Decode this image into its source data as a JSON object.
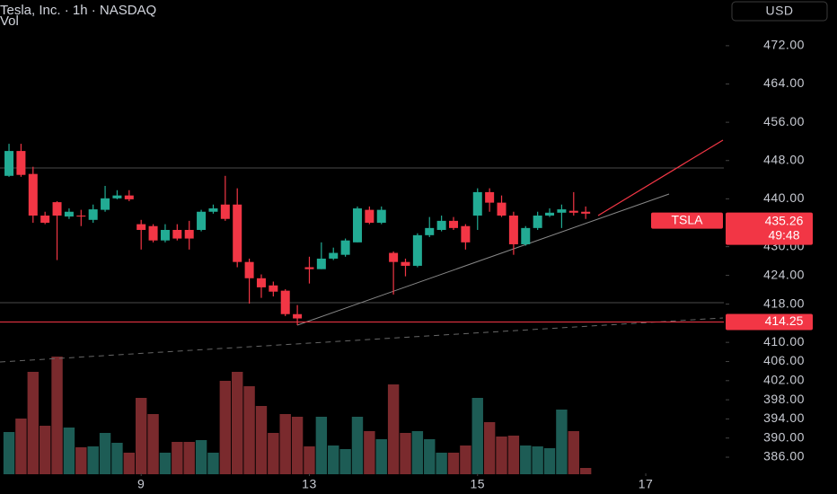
{
  "header": {
    "title": "Tesla, Inc. · 1h · NASDAQ",
    "currency": "USD"
  },
  "chart_data": {
    "type": "candlestick",
    "xlim": [
      -0.75,
      59.5
    ],
    "xticks": [
      {
        "value": 11,
        "label": "9"
      },
      {
        "value": 25,
        "label": "13"
      },
      {
        "value": 39,
        "label": "15"
      },
      {
        "value": 53,
        "label": "17"
      }
    ],
    "ylim": [
      383,
      477.8
    ],
    "yticks": [
      {
        "value": 472,
        "label": "472.00"
      },
      {
        "value": 464,
        "label": "464.00"
      },
      {
        "value": 456,
        "label": "456.00"
      },
      {
        "value": 448,
        "label": "448.00"
      },
      {
        "value": 440,
        "label": "440.00"
      },
      {
        "value": 430,
        "label": "430.00"
      },
      {
        "value": 424,
        "label": "424.00"
      },
      {
        "value": 418,
        "label": "418.00"
      },
      {
        "value": 410,
        "label": "410.00"
      },
      {
        "value": 406,
        "label": "406.00"
      },
      {
        "value": 402,
        "label": "402.00"
      },
      {
        "value": 398,
        "label": "398.00"
      },
      {
        "value": 394,
        "label": "394.00"
      },
      {
        "value": 390,
        "label": "390.00"
      },
      {
        "value": 386,
        "label": "386.00"
      }
    ],
    "series": [
      {
        "name": "TSLA",
        "up_color": "#22ab94",
        "down_color": "#f23645",
        "open": [
          444.8,
          450.0,
          445.2,
          436.5,
          439.3,
          436.3,
          436.5,
          435.6,
          437.7,
          440.1,
          440.7,
          434.7,
          434.3,
          431.3,
          433.5,
          433.5,
          433.5,
          437.3,
          438.8,
          438.8,
          426.8,
          423.4,
          421.9,
          420.8,
          415.9,
          425.7,
          425.3,
          427.5,
          428.3,
          430.9,
          437.7,
          435.0,
          428.7,
          426.8,
          426.0,
          432.4,
          433.5,
          435.4,
          434.3,
          436.5,
          441.4,
          439.2,
          436.5,
          430.5,
          433.9,
          436.5,
          437.1,
          437.5,
          437.3
        ],
        "high": [
          451.5,
          451.5,
          446.7,
          437.3,
          439.5,
          438.0,
          437.7,
          438.8,
          442.7,
          441.8,
          441.8,
          435.6,
          434.7,
          434.7,
          434.7,
          435.4,
          437.7,
          438.8,
          444.8,
          442.2,
          427.5,
          424.2,
          422.7,
          421.1,
          417.8,
          427.9,
          430.9,
          429.8,
          431.7,
          438.4,
          438.4,
          438.4,
          429.0,
          427.5,
          432.8,
          436.2,
          436.5,
          436.2,
          434.7,
          442.2,
          442.2,
          440.7,
          437.3,
          434.3,
          437.3,
          438.0,
          438.8,
          441.4,
          438.4
        ],
        "low": [
          444.6,
          444.6,
          435.0,
          434.7,
          427.2,
          435.8,
          434.3,
          435.0,
          437.3,
          439.9,
          439.5,
          429.4,
          430.9,
          430.9,
          431.3,
          429.4,
          433.2,
          436.9,
          435.4,
          425.7,
          418.1,
          419.3,
          419.6,
          415.5,
          413.6,
          422.3,
          425.3,
          427.2,
          427.9,
          430.9,
          434.7,
          434.7,
          420.0,
          423.8,
          425.7,
          432.0,
          433.2,
          433.5,
          429.4,
          433.5,
          437.3,
          436.2,
          428.3,
          430.2,
          433.5,
          436.2,
          433.9,
          436.5,
          435.8
        ],
        "close": [
          450.0,
          445.0,
          436.5,
          435.0,
          436.5,
          437.3,
          436.3,
          437.8,
          440.1,
          440.7,
          439.9,
          433.5,
          431.3,
          433.5,
          431.7,
          431.7,
          437.3,
          438.0,
          435.8,
          426.8,
          423.4,
          421.5,
          420.6,
          415.9,
          415.0,
          425.3,
          427.5,
          428.7,
          431.3,
          438.0,
          435.0,
          437.7,
          426.8,
          426.0,
          432.4,
          433.9,
          435.4,
          433.9,
          430.9,
          441.4,
          439.2,
          436.5,
          430.5,
          433.9,
          436.5,
          437.1,
          437.8,
          437.1,
          436.9
        ]
      }
    ],
    "last_price": 435.26,
    "countdown": "49:48",
    "price_line": 414.25,
    "volume": {
      "name": "Vol",
      "up_color": "#1d5c55",
      "down_color": "#7a2a2d",
      "vlim": [
        0,
        160
      ],
      "values": [
        47,
        62,
        114,
        54,
        131,
        52,
        30,
        31,
        46,
        35,
        24,
        85,
        67,
        24,
        36,
        36,
        38,
        24,
        104,
        114,
        98,
        76,
        46,
        67,
        64,
        31,
        64,
        32,
        28,
        64,
        48,
        39,
        100,
        46,
        48,
        39,
        24,
        24,
        32,
        85,
        58,
        42,
        43,
        32,
        31,
        29,
        72,
        48,
        7
      ]
    }
  }
}
